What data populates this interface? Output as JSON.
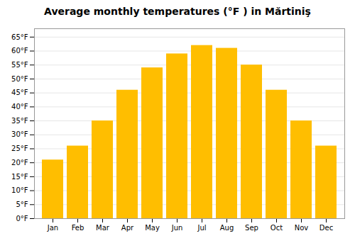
{
  "chart_data": {
    "type": "bar",
    "title": "Average monthly temperatures (°F ) in Mărtiniş",
    "categories": [
      "Jan",
      "Feb",
      "Mar",
      "Apr",
      "May",
      "Jun",
      "Jul",
      "Aug",
      "Sep",
      "Oct",
      "Nov",
      "Dec"
    ],
    "values": [
      21,
      26,
      35,
      46,
      54,
      59,
      62,
      61,
      55,
      46,
      35,
      26
    ],
    "color": "#FFBE00",
    "ylim": [
      0,
      68
    ],
    "yticks": [
      {
        "value": 0,
        "label": "0°F"
      },
      {
        "value": 5,
        "label": "5°F"
      },
      {
        "value": 10,
        "label": "10°F"
      },
      {
        "value": 15,
        "label": "15°F"
      },
      {
        "value": 20,
        "label": "20°F"
      },
      {
        "value": 25,
        "label": "25°F"
      },
      {
        "value": 30,
        "label": "30°F"
      },
      {
        "value": 35,
        "label": "35°F"
      },
      {
        "value": 40,
        "label": "40°F"
      },
      {
        "value": 45,
        "label": "45°F"
      },
      {
        "value": 50,
        "label": "50°F"
      },
      {
        "value": 55,
        "label": "55°F"
      },
      {
        "value": 60,
        "label": "60°F"
      },
      {
        "value": 65,
        "label": "65°F"
      }
    ],
    "grid": true
  }
}
